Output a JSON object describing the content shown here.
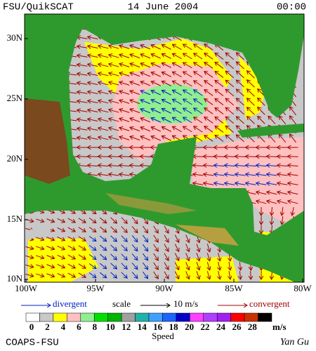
{
  "header": {
    "product": "FSU/QuikSCAT",
    "date": "14 June 2004",
    "time": "00:00"
  },
  "axes": {
    "lat_labels": [
      "30N",
      "25N",
      "20N",
      "15N",
      "10N"
    ],
    "lon_labels": [
      "100W",
      "95W",
      "90W",
      "85W",
      "80W"
    ]
  },
  "legend": {
    "divergent": "divergent",
    "scale": "scale",
    "scale_value": "10 m/s",
    "convergent": "convergent"
  },
  "colorbar": {
    "labels": [
      "0",
      "2",
      "4",
      "6",
      "8",
      "10",
      "12",
      "14",
      "16",
      "18",
      "20",
      "22",
      "24",
      "26",
      "28"
    ],
    "unit": "m/s",
    "title": "Speed",
    "colors": [
      "#ffffff",
      "#c8c8c8",
      "#ffff00",
      "#ffc0c0",
      "#90ee90",
      "#00e000",
      "#00b400",
      "#a0a0a0",
      "#20b2aa",
      "#40a0ff",
      "#1e64ff",
      "#0000c8",
      "#ff40ff",
      "#b040ff",
      "#a020f0",
      "#ff0000",
      "#c83200",
      "#000000"
    ]
  },
  "footer": {
    "left": "COAPS-FSU",
    "right": "Yan Gu"
  }
}
